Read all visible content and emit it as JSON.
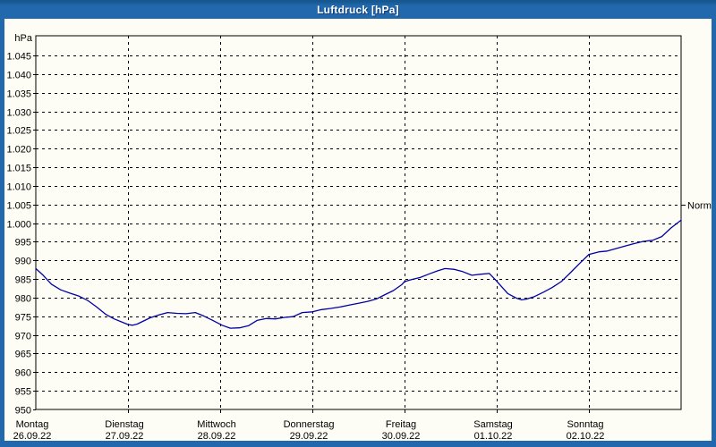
{
  "window": {
    "title": "Luftdruck [hPa]",
    "titlebar_color": "#2169ac",
    "frame_color": "#2169ac",
    "panel_background": "#fdfdf5"
  },
  "chart_data": {
    "type": "line",
    "title": "Luftdruck [hPa]",
    "unit_label": "hPa",
    "ylabel": "hPa",
    "xlabel": "",
    "grid": "dashed",
    "legend_position": "none",
    "ylim": [
      950,
      1050.3
    ],
    "ytick_values": [
      1045,
      1040,
      1035,
      1030,
      1025,
      1020,
      1015,
      1010,
      1005,
      1000,
      995,
      990,
      985,
      980,
      975,
      970,
      965,
      960,
      955,
      950
    ],
    "ytick_labels": [
      "1.045",
      "1.040",
      "1.035",
      "1.030",
      "1.025",
      "1.020",
      "1.015",
      "1.010",
      "1.005",
      "1.000",
      "995",
      "990",
      "985",
      "980",
      "975",
      "970",
      "965",
      "960",
      "955",
      "950"
    ],
    "x_axis": {
      "days": [
        {
          "name": "Montag",
          "date": "26.09.22"
        },
        {
          "name": "Dienstag",
          "date": "27.09.22"
        },
        {
          "name": "Mittwoch",
          "date": "28.09.22"
        },
        {
          "name": "Donnerstag",
          "date": "29.09.22"
        },
        {
          "name": "Freitag",
          "date": "30.09.22"
        },
        {
          "name": "Samstag",
          "date": "01.10.22"
        },
        {
          "name": "Sonntag",
          "date": "02.10.22"
        }
      ],
      "days_shown": 7
    },
    "normal_marker": {
      "label": "Normal",
      "value": 1005
    },
    "series": [
      {
        "name": "Luftdruck",
        "color": "#0000a6",
        "points": [
          [
            0.0,
            987.8
          ],
          [
            0.08,
            986.0
          ],
          [
            0.17,
            983.6
          ],
          [
            0.27,
            982.1
          ],
          [
            0.37,
            981.2
          ],
          [
            0.47,
            980.4
          ],
          [
            0.56,
            979.3
          ],
          [
            0.66,
            977.5
          ],
          [
            0.76,
            975.5
          ],
          [
            0.85,
            974.3
          ],
          [
            0.95,
            973.3
          ],
          [
            1.0,
            972.8
          ],
          [
            1.05,
            972.6
          ],
          [
            1.1,
            972.9
          ],
          [
            1.15,
            973.5
          ],
          [
            1.24,
            974.6
          ],
          [
            1.34,
            975.4
          ],
          [
            1.43,
            976.0
          ],
          [
            1.53,
            975.8
          ],
          [
            1.63,
            975.7
          ],
          [
            1.73,
            976.0
          ],
          [
            1.82,
            975.1
          ],
          [
            1.92,
            973.9
          ],
          [
            2.02,
            972.6
          ],
          [
            2.11,
            971.8
          ],
          [
            2.21,
            971.9
          ],
          [
            2.31,
            972.5
          ],
          [
            2.4,
            973.9
          ],
          [
            2.5,
            974.4
          ],
          [
            2.6,
            974.3
          ],
          [
            2.7,
            974.7
          ],
          [
            2.79,
            974.9
          ],
          [
            2.89,
            976.0
          ],
          [
            3.0,
            976.2
          ],
          [
            3.1,
            976.8
          ],
          [
            3.2,
            977.1
          ],
          [
            3.3,
            977.5
          ],
          [
            3.4,
            978.0
          ],
          [
            3.5,
            978.5
          ],
          [
            3.6,
            979.0
          ],
          [
            3.7,
            979.7
          ],
          [
            3.78,
            980.7
          ],
          [
            3.88,
            981.9
          ],
          [
            3.97,
            983.5
          ],
          [
            4.0,
            984.3
          ],
          [
            4.07,
            984.8
          ],
          [
            4.17,
            985.4
          ],
          [
            4.26,
            986.3
          ],
          [
            4.36,
            987.2
          ],
          [
            4.44,
            987.8
          ],
          [
            4.54,
            987.6
          ],
          [
            4.63,
            987.0
          ],
          [
            4.73,
            986.0
          ],
          [
            4.83,
            986.3
          ],
          [
            4.92,
            986.5
          ],
          [
            5.0,
            984.4
          ],
          [
            5.12,
            981.1
          ],
          [
            5.22,
            979.8
          ],
          [
            5.27,
            979.4
          ],
          [
            5.32,
            979.6
          ],
          [
            5.41,
            980.3
          ],
          [
            5.51,
            981.5
          ],
          [
            5.6,
            982.7
          ],
          [
            5.7,
            984.3
          ],
          [
            5.8,
            986.7
          ],
          [
            5.9,
            989.2
          ],
          [
            6.0,
            991.6
          ],
          [
            6.11,
            992.3
          ],
          [
            6.2,
            992.5
          ],
          [
            6.3,
            993.2
          ],
          [
            6.4,
            993.9
          ],
          [
            6.49,
            994.5
          ],
          [
            6.59,
            995.1
          ],
          [
            6.69,
            995.4
          ],
          [
            6.79,
            996.4
          ],
          [
            6.89,
            998.7
          ],
          [
            6.98,
            1000.4
          ],
          [
            7.0,
            1000.8
          ]
        ]
      }
    ]
  }
}
